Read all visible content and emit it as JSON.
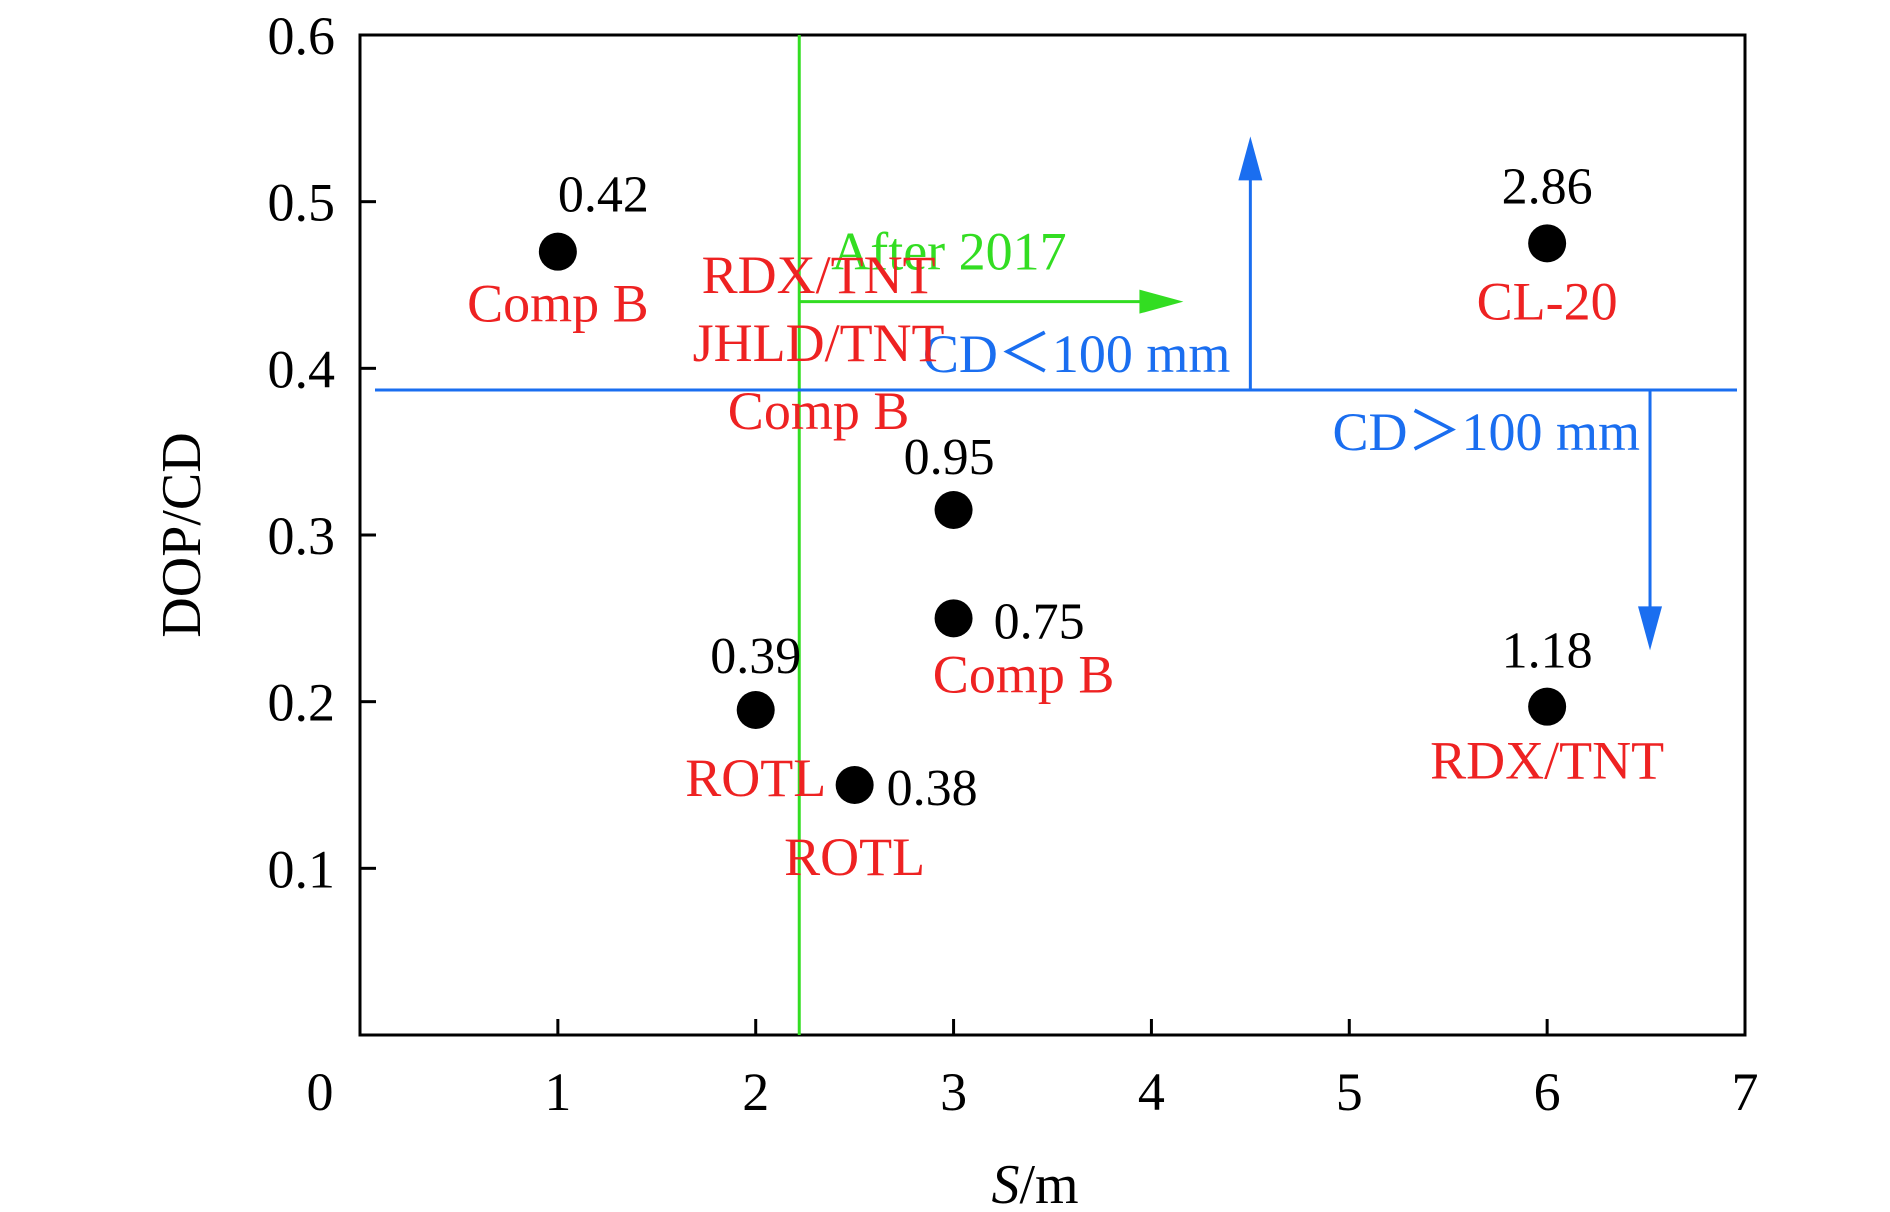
{
  "chart_data": {
    "type": "scatter",
    "title": "",
    "xlabel_italic": "S",
    "xlabel_rest": "/m",
    "ylabel": "DOP/CD",
    "xlim": [
      0,
      7
    ],
    "ylim": [
      0,
      0.6
    ],
    "x_ticks": [
      "0",
      "1",
      "2",
      "3",
      "4",
      "5",
      "6",
      "7"
    ],
    "x_tick_values": [
      0,
      1,
      2,
      3,
      4,
      5,
      6,
      7
    ],
    "y_ticks": [
      "0.1",
      "0.2",
      "0.3",
      "0.4",
      "0.5",
      "0.6"
    ],
    "y_tick_values": [
      0.1,
      0.2,
      0.3,
      0.4,
      0.5,
      0.6
    ],
    "grid": false,
    "points": [
      {
        "x": 1.0,
        "y": 0.47,
        "value": "0.42",
        "labels": [
          "Comp B"
        ]
      },
      {
        "x": 2.0,
        "y": 0.195,
        "value": "0.39",
        "labels": [
          "ROTL"
        ]
      },
      {
        "x": 2.5,
        "y": 0.15,
        "value": "0.38",
        "labels": [
          "ROTL"
        ]
      },
      {
        "x": 3.0,
        "y": 0.315,
        "value": "0.95",
        "labels": [
          "RDX/TNT",
          "JHLD/TNT",
          "Comp B"
        ]
      },
      {
        "x": 3.0,
        "y": 0.25,
        "value": "0.75",
        "labels": [
          "Comp B"
        ]
      },
      {
        "x": 6.0,
        "y": 0.475,
        "value": "2.86",
        "labels": [
          "CL-20"
        ]
      },
      {
        "x": 6.0,
        "y": 0.197,
        "value": "1.18",
        "labels": [
          "RDX/TNT"
        ]
      }
    ],
    "reference_lines": [
      {
        "orientation": "vertical",
        "x": 2.22,
        "color": "#33dd22",
        "label": "After 2017"
      },
      {
        "orientation": "horizontal",
        "y": 0.387,
        "color": "#1a6ef0",
        "label_above": "CD＜100 mm",
        "label_below": "CD＞100 mm"
      }
    ],
    "colors": {
      "points": "#000000",
      "point_labels": "#ee2222",
      "green": "#33dd22",
      "blue": "#1a6ef0"
    }
  }
}
